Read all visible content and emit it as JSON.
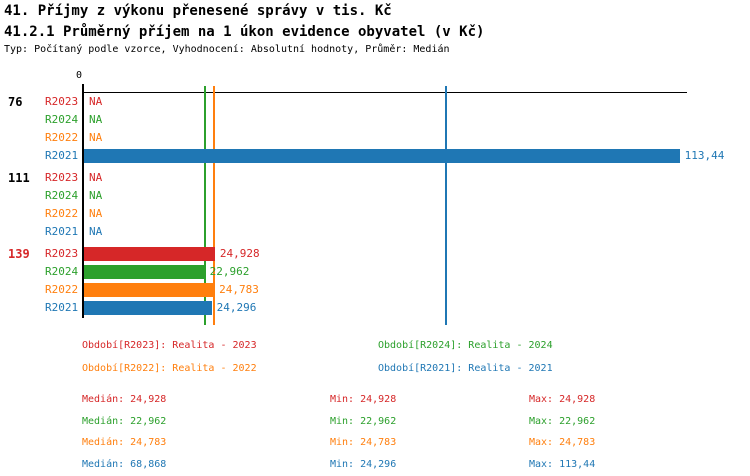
{
  "title1": "41. Příjmy z výkonu přenesené správy v tis. Kč",
  "title2": "41.2.1 Průměrný příjem na 1 úkon evidence obyvatel (v Kč)",
  "subtitle": "Typ: Počítaný podle vzorce, Vyhodnocení: Absolutní hodnoty, Průměr: Medián",
  "colors": {
    "R2023": "#d62728",
    "R2024": "#2ca02c",
    "R2022": "#ff7f0e",
    "R2021": "#1f77b4",
    "group_label_default": "#000000",
    "group_label_highlight": "#d62728"
  },
  "chart_data": {
    "type": "bar",
    "orientation": "horizontal",
    "x_axis": {
      "origin_label": "0",
      "min": 0,
      "max_visible": 113.44
    },
    "na_text": "NA",
    "groups": [
      {
        "label": "76",
        "label_highlight": false,
        "bars": [
          {
            "series": "R2023",
            "value": null,
            "text": "NA"
          },
          {
            "series": "R2024",
            "value": null,
            "text": "NA"
          },
          {
            "series": "R2022",
            "value": null,
            "text": "NA"
          },
          {
            "series": "R2021",
            "value": 113.44,
            "text": "113,44"
          }
        ]
      },
      {
        "label": "111",
        "label_highlight": false,
        "bars": [
          {
            "series": "R2023",
            "value": null,
            "text": "NA"
          },
          {
            "series": "R2024",
            "value": null,
            "text": "NA"
          },
          {
            "series": "R2022",
            "value": null,
            "text": "NA"
          },
          {
            "series": "R2021",
            "value": null,
            "text": "NA"
          }
        ]
      },
      {
        "label": "139",
        "label_highlight": true,
        "bars": [
          {
            "series": "R2023",
            "value": 24.928,
            "text": "24,928"
          },
          {
            "series": "R2024",
            "value": 22.962,
            "text": "22,962"
          },
          {
            "series": "R2022",
            "value": 24.783,
            "text": "24,783"
          },
          {
            "series": "R2021",
            "value": 24.296,
            "text": "24,296"
          }
        ]
      }
    ],
    "median_lines": [
      {
        "series": "R2024",
        "value": 22.962
      },
      {
        "series": "R2022",
        "value": 24.783
      },
      {
        "series": "R2021",
        "value": 68.868
      }
    ]
  },
  "legend": [
    {
      "series": "R2023",
      "label": "Období[R2023]: Realita - 2023"
    },
    {
      "series": "R2024",
      "label": "Období[R2024]: Realita - 2024"
    },
    {
      "series": "R2022",
      "label": "Období[R2022]: Realita - 2022"
    },
    {
      "series": "R2021",
      "label": "Období[R2021]: Realita - 2021"
    }
  ],
  "stats_labels": {
    "median": "Medián",
    "min": "Min",
    "max": "Max"
  },
  "stats": [
    {
      "series": "R2023",
      "median": "24,928",
      "min": "24,928",
      "max": "24,928"
    },
    {
      "series": "R2024",
      "median": "22,962",
      "min": "22,962",
      "max": "22,962"
    },
    {
      "series": "R2022",
      "median": "24,783",
      "min": "24,783",
      "max": "24,783"
    },
    {
      "series": "R2021",
      "median": "68,868",
      "min": "24,296",
      "max": "113,44"
    }
  ]
}
